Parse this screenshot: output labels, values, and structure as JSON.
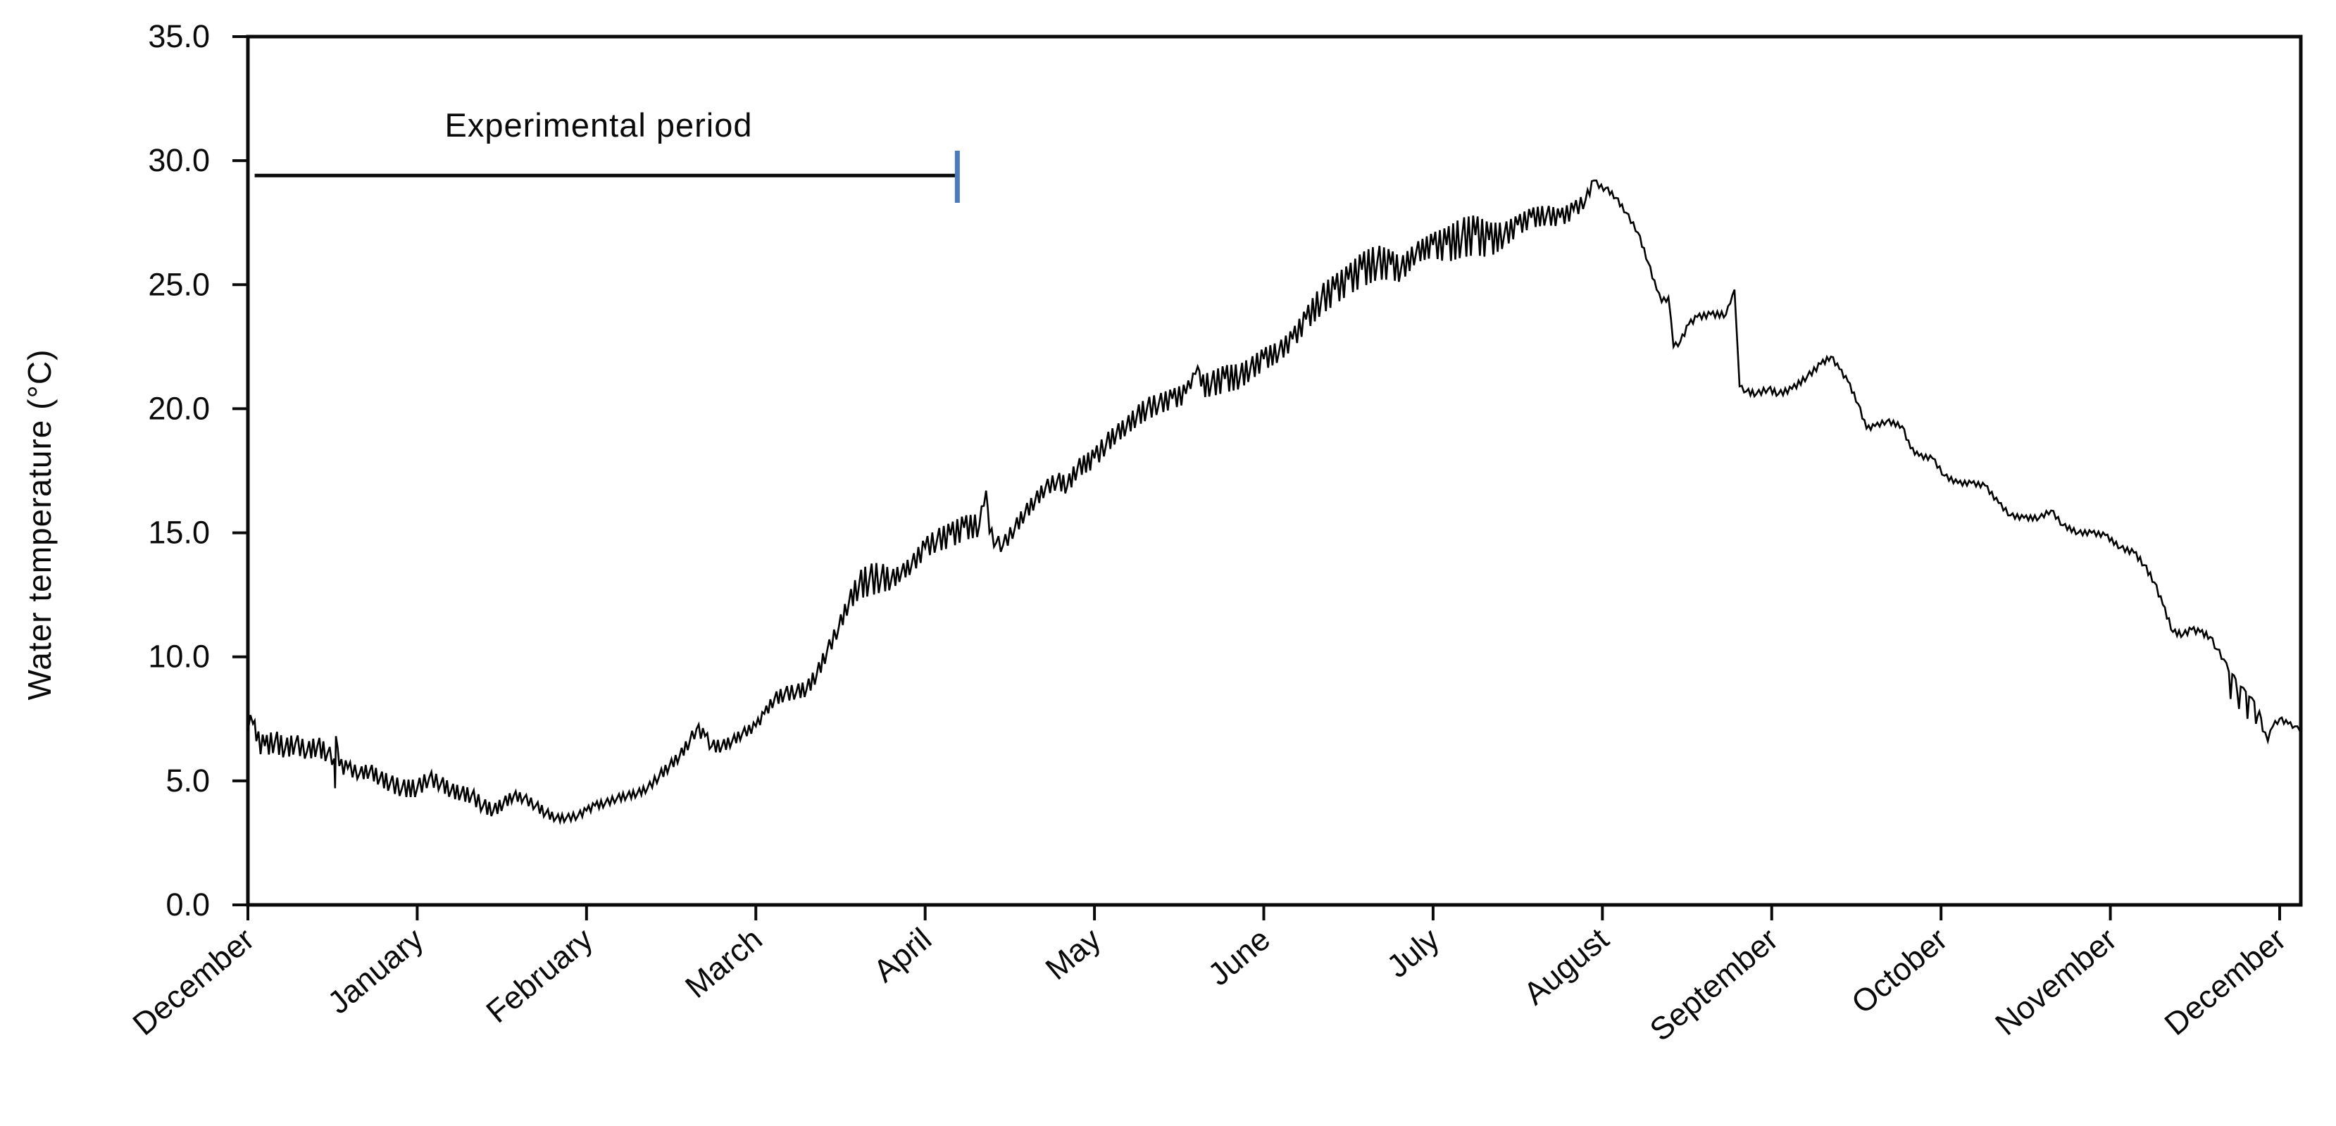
{
  "annotation": {
    "label": "Experimental period",
    "start_month": 0.04,
    "end_month": 4.19,
    "temp_level": 29.4,
    "end_tick_top_temp": 30.4,
    "end_tick_bottom_temp": 28.3,
    "end_tick_color": "#4b7ab8",
    "line_color": "#0a0a0a"
  },
  "chart_data": {
    "type": "line",
    "title": "",
    "xlabel": "",
    "ylabel": "Water temperature (°C)",
    "ylim": [
      0,
      35
    ],
    "grid": false,
    "legend": "none",
    "background_color": "#ffffff",
    "axis_color": "#0a0a0a",
    "x_tick_labels": [
      "December",
      "January",
      "February",
      "March",
      "April",
      "May",
      "June",
      "July",
      "August",
      "September",
      "October",
      "November",
      "December"
    ],
    "y_tick_values": [
      0,
      5,
      10,
      15,
      20,
      25,
      30,
      35
    ],
    "y_tick_labels": [
      "0.0",
      "5.0",
      "10.0",
      "15.0",
      "20.0",
      "25.0",
      "30.0",
      "35.0"
    ],
    "series": [
      {
        "name": "water-temperature",
        "color": "#000000",
        "x_unit": "months-from-first-december",
        "y_unit": "degC",
        "point_format": [
          "x_month",
          "temp_c",
          "noise_amplitude_c"
        ],
        "points": [
          [
            0,
            7.0,
            0.5
          ],
          [
            0.03,
            7.3,
            0.5
          ],
          [
            0.05,
            6.6,
            0.45
          ],
          [
            0.1,
            6.4,
            0.4
          ],
          [
            0.16,
            6.6,
            0.45
          ],
          [
            0.22,
            6.3,
            0.4
          ],
          [
            0.28,
            6.5,
            0.4
          ],
          [
            0.35,
            6.2,
            0.35
          ],
          [
            0.41,
            6.4,
            0.4
          ],
          [
            0.47,
            6.1,
            0.35
          ],
          [
            0.51,
            5.9,
            0.3
          ],
          [
            0.515,
            4.7,
            0
          ],
          [
            0.52,
            6.8,
            0
          ],
          [
            0.54,
            5.6,
            0.3
          ],
          [
            0.59,
            5.5,
            0.3
          ],
          [
            0.66,
            5.3,
            0.25
          ],
          [
            0.72,
            5.4,
            0.3
          ],
          [
            0.78,
            5.1,
            0.3
          ],
          [
            0.84,
            4.9,
            0.35
          ],
          [
            0.91,
            4.7,
            0.35
          ],
          [
            1.0,
            4.7,
            0.35
          ],
          [
            1.07,
            5.1,
            0.3
          ],
          [
            1.14,
            4.9,
            0.3
          ],
          [
            1.2,
            4.6,
            0.3
          ],
          [
            1.26,
            4.5,
            0.3
          ],
          [
            1.32,
            4.4,
            0.3
          ],
          [
            1.39,
            4.0,
            0.3
          ],
          [
            1.45,
            3.8,
            0.25
          ],
          [
            1.51,
            4.1,
            0.25
          ],
          [
            1.57,
            4.4,
            0.2
          ],
          [
            1.63,
            4.3,
            0.2
          ],
          [
            1.7,
            4.0,
            0.2
          ],
          [
            1.76,
            3.7,
            0.2
          ],
          [
            1.82,
            3.5,
            0.15
          ],
          [
            1.88,
            3.5,
            0.15
          ],
          [
            1.95,
            3.6,
            0.15
          ],
          [
            2.0,
            3.8,
            0.15
          ],
          [
            2.05,
            4.0,
            0.15
          ],
          [
            2.11,
            4.1,
            0.15
          ],
          [
            2.18,
            4.3,
            0.15
          ],
          [
            2.24,
            4.4,
            0.15
          ],
          [
            2.3,
            4.5,
            0.15
          ],
          [
            2.36,
            4.7,
            0.15
          ],
          [
            2.43,
            5.2,
            0.2
          ],
          [
            2.49,
            5.6,
            0.2
          ],
          [
            2.55,
            6.0,
            0.2
          ],
          [
            2.61,
            6.6,
            0.25
          ],
          [
            2.65,
            7.1,
            0.25
          ],
          [
            2.7,
            6.8,
            0.25
          ],
          [
            2.74,
            6.4,
            0.25
          ],
          [
            2.8,
            6.4,
            0.25
          ],
          [
            2.86,
            6.6,
            0.2
          ],
          [
            2.92,
            6.9,
            0.2
          ],
          [
            3.0,
            7.2,
            0.2
          ],
          [
            3.05,
            7.7,
            0.2
          ],
          [
            3.11,
            8.3,
            0.25
          ],
          [
            3.17,
            8.5,
            0.3
          ],
          [
            3.24,
            8.6,
            0.3
          ],
          [
            3.3,
            8.7,
            0.3
          ],
          [
            3.36,
            9.3,
            0.3
          ],
          [
            3.42,
            10.2,
            0.3
          ],
          [
            3.49,
            11.2,
            0.3
          ],
          [
            3.55,
            12.2,
            0.35
          ],
          [
            3.61,
            12.9,
            0.55
          ],
          [
            3.67,
            13.1,
            0.65
          ],
          [
            3.74,
            13.2,
            0.6
          ],
          [
            3.8,
            13.1,
            0.4
          ],
          [
            3.86,
            13.4,
            0.3
          ],
          [
            3.92,
            13.7,
            0.35
          ],
          [
            4.0,
            14.4,
            0.4
          ],
          [
            4.07,
            14.7,
            0.45
          ],
          [
            4.15,
            14.9,
            0.5
          ],
          [
            4.23,
            15.2,
            0.5
          ],
          [
            4.32,
            15.3,
            0.45
          ],
          [
            4.36,
            16.7,
            0
          ],
          [
            4.38,
            15.0,
            0.3
          ],
          [
            4.42,
            14.6,
            0.3
          ],
          [
            4.46,
            14.5,
            0.3
          ],
          [
            4.53,
            15.2,
            0.3
          ],
          [
            4.59,
            15.8,
            0.3
          ],
          [
            4.65,
            16.3,
            0.3
          ],
          [
            4.71,
            16.8,
            0.3
          ],
          [
            4.78,
            17.1,
            0.35
          ],
          [
            4.84,
            16.9,
            0.35
          ],
          [
            4.9,
            17.6,
            0.35
          ],
          [
            5.0,
            18.0,
            0.4
          ],
          [
            5.07,
            18.6,
            0.4
          ],
          [
            5.13,
            19.0,
            0.35
          ],
          [
            5.19,
            19.3,
            0.35
          ],
          [
            5.25,
            19.7,
            0.4
          ],
          [
            5.31,
            20.0,
            0.45
          ],
          [
            5.38,
            20.2,
            0.4
          ],
          [
            5.46,
            20.4,
            0.4
          ],
          [
            5.54,
            20.6,
            0.4
          ],
          [
            5.61,
            21.7,
            0
          ],
          [
            5.63,
            20.9,
            0.45
          ],
          [
            5.69,
            21.0,
            0.5
          ],
          [
            5.77,
            21.2,
            0.55
          ],
          [
            5.86,
            21.3,
            0.5
          ],
          [
            5.92,
            21.6,
            0.45
          ],
          [
            6.0,
            22.0,
            0.45
          ],
          [
            6.09,
            22.3,
            0.4
          ],
          [
            6.17,
            22.8,
            0.4
          ],
          [
            6.25,
            23.6,
            0.45
          ],
          [
            6.34,
            24.4,
            0.6
          ],
          [
            6.42,
            24.8,
            0.6
          ],
          [
            6.5,
            25.2,
            0.6
          ],
          [
            6.58,
            25.6,
            0.7
          ],
          [
            6.67,
            25.9,
            0.7
          ],
          [
            6.75,
            25.8,
            0.6
          ],
          [
            6.81,
            25.6,
            0.5
          ],
          [
            6.9,
            26.3,
            0.4
          ],
          [
            7.0,
            26.6,
            0.5
          ],
          [
            7.08,
            26.6,
            0.7
          ],
          [
            7.17,
            26.9,
            0.8
          ],
          [
            7.25,
            27.0,
            0.8
          ],
          [
            7.33,
            26.8,
            0.7
          ],
          [
            7.42,
            27.0,
            0.5
          ],
          [
            7.5,
            27.4,
            0.4
          ],
          [
            7.58,
            27.7,
            0.4
          ],
          [
            7.67,
            27.8,
            0.4
          ],
          [
            7.75,
            27.7,
            0.35
          ],
          [
            7.83,
            28.0,
            0.35
          ],
          [
            7.9,
            28.4,
            0.25
          ],
          [
            7.95,
            29.2,
            0.15
          ],
          [
            7.98,
            28.9,
            0.15
          ],
          [
            8.02,
            28.9,
            0.1
          ],
          [
            8.08,
            28.5,
            0.1
          ],
          [
            8.14,
            27.9,
            0.1
          ],
          [
            8.21,
            27.1,
            0.1
          ],
          [
            8.27,
            25.9,
            0.1
          ],
          [
            8.32,
            24.8,
            0.1
          ],
          [
            8.35,
            24.3,
            0.12
          ],
          [
            8.39,
            24.5,
            0.12
          ],
          [
            8.42,
            22.5,
            0.1
          ],
          [
            8.46,
            22.7,
            0.12
          ],
          [
            8.51,
            23.4,
            0.12
          ],
          [
            8.56,
            23.7,
            0.12
          ],
          [
            8.64,
            23.8,
            0.12
          ],
          [
            8.73,
            23.8,
            0.12
          ],
          [
            8.78,
            24.8,
            0
          ],
          [
            8.79,
            23.5,
            0
          ],
          [
            8.81,
            20.9,
            0.08
          ],
          [
            8.85,
            20.7,
            0.12
          ],
          [
            8.91,
            20.6,
            0.12
          ],
          [
            8.98,
            20.8,
            0.12
          ],
          [
            9.04,
            20.6,
            0.12
          ],
          [
            9.12,
            20.8,
            0.12
          ],
          [
            9.21,
            21.3,
            0.12
          ],
          [
            9.29,
            21.8,
            0.12
          ],
          [
            9.35,
            22.1,
            0.1
          ],
          [
            9.4,
            21.6,
            0.1
          ],
          [
            9.45,
            21.1,
            0.1
          ],
          [
            9.51,
            20.2,
            0.1
          ],
          [
            9.56,
            19.2,
            0.1
          ],
          [
            9.61,
            19.3,
            0.1
          ],
          [
            9.68,
            19.5,
            0.1
          ],
          [
            9.77,
            19.3,
            0.1
          ],
          [
            9.82,
            18.4,
            0.1
          ],
          [
            9.87,
            18.1,
            0.1
          ],
          [
            9.95,
            18.0,
            0.1
          ],
          [
            10.02,
            17.3,
            0.1
          ],
          [
            10.1,
            17.0,
            0.1
          ],
          [
            10.18,
            17.0,
            0.1
          ],
          [
            10.26,
            16.9,
            0.1
          ],
          [
            10.34,
            16.2,
            0.1
          ],
          [
            10.41,
            15.7,
            0.1
          ],
          [
            10.49,
            15.6,
            0.1
          ],
          [
            10.58,
            15.6,
            0.1
          ],
          [
            10.65,
            15.9,
            0.1
          ],
          [
            10.72,
            15.3,
            0.1
          ],
          [
            10.81,
            15.0,
            0.1
          ],
          [
            10.89,
            15.0,
            0.1
          ],
          [
            10.97,
            14.9,
            0.1
          ],
          [
            11.06,
            14.4,
            0.1
          ],
          [
            11.14,
            14.2,
            0.12
          ],
          [
            11.2,
            13.7,
            0.12
          ],
          [
            11.26,
            13.0,
            0.12
          ],
          [
            11.31,
            12.1,
            0.12
          ],
          [
            11.37,
            11.0,
            0.12
          ],
          [
            11.43,
            10.9,
            0.12
          ],
          [
            11.48,
            11.1,
            0.12
          ],
          [
            11.53,
            11.0,
            0.12
          ],
          [
            11.59,
            10.8,
            0.12
          ],
          [
            11.63,
            10.3,
            0.12
          ],
          [
            11.67,
            9.9,
            0.12
          ],
          [
            11.7,
            9.4,
            0.1
          ],
          [
            11.71,
            8.3,
            0
          ],
          [
            11.72,
            9.3,
            0
          ],
          [
            11.74,
            9.1,
            0.1
          ],
          [
            11.76,
            7.9,
            0
          ],
          [
            11.77,
            8.8,
            0
          ],
          [
            11.8,
            8.6,
            0.1
          ],
          [
            11.81,
            7.5,
            0
          ],
          [
            11.82,
            8.4,
            0
          ],
          [
            11.85,
            8.2,
            0.1
          ],
          [
            11.86,
            7.3,
            0
          ],
          [
            11.88,
            7.8,
            0.12
          ],
          [
            11.9,
            7.0,
            0.15
          ],
          [
            11.93,
            6.6,
            0.15
          ],
          [
            11.96,
            7.2,
            0.12
          ],
          [
            12.0,
            7.5,
            0.1
          ],
          [
            12.05,
            7.3,
            0.1
          ],
          [
            12.09,
            7.2,
            0.1
          ],
          [
            12.12,
            7.0,
            0.1
          ]
        ]
      }
    ]
  }
}
